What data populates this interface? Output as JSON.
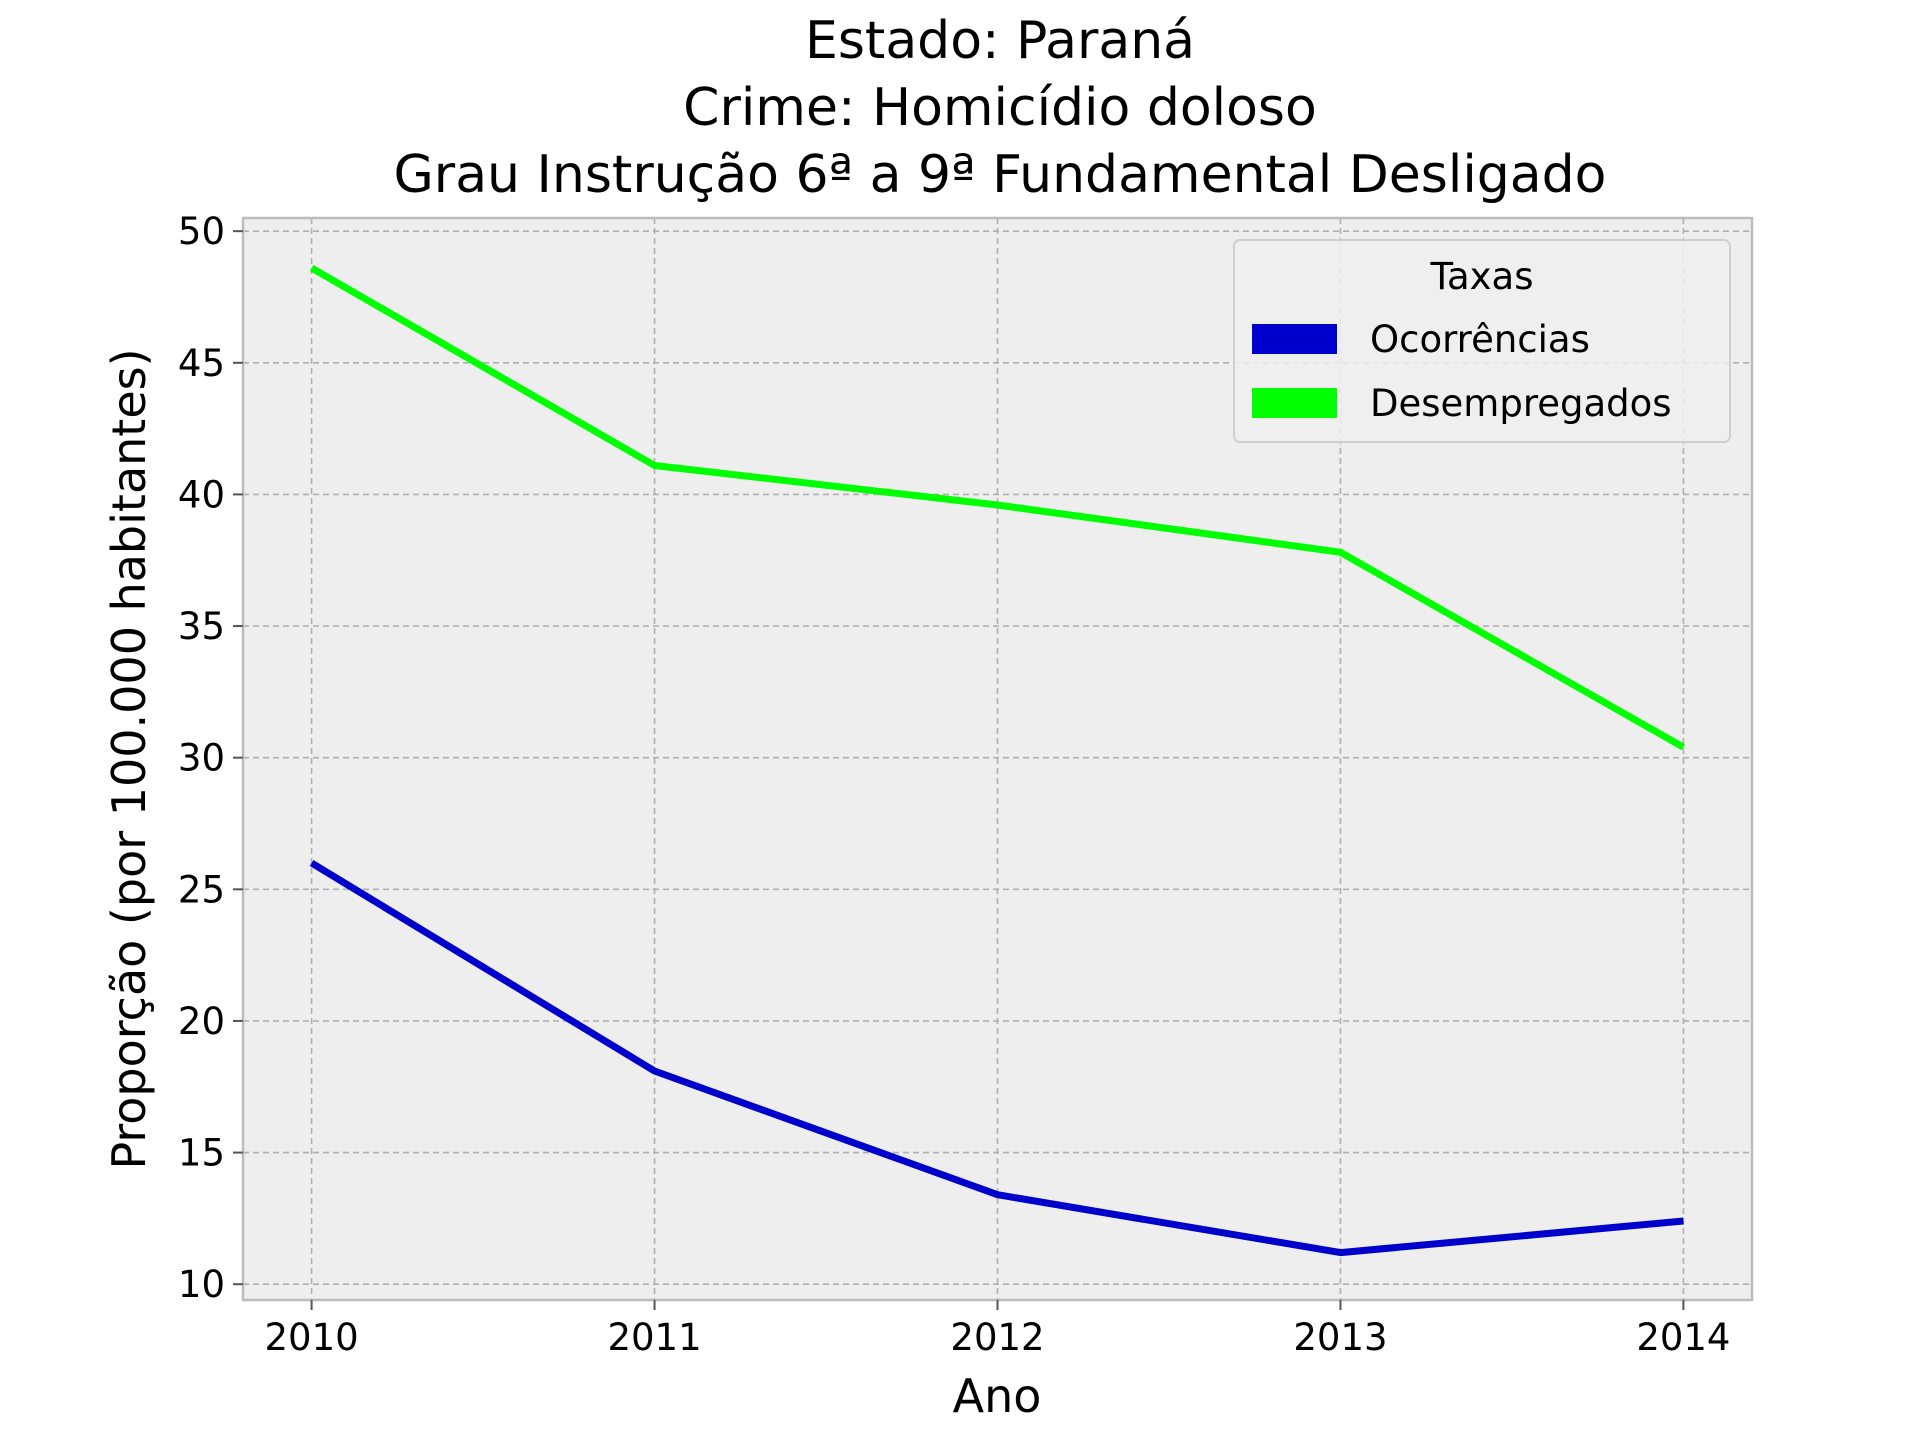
{
  "chart_data": {
    "type": "line",
    "title_lines": [
      "Estado: Paraná",
      "Crime: Homicídio doloso",
      "Grau Instrução  6ª a 9ª Fundamental   Desligado"
    ],
    "xlabel": "Ano",
    "ylabel": "Proporção (por 100.000 habitantes)",
    "x": [
      2010,
      2011,
      2012,
      2013,
      2014
    ],
    "x_tick_labels": [
      "2010",
      "2011",
      "2012",
      "2013",
      "2014"
    ],
    "y_ticks": [
      10,
      15,
      20,
      25,
      30,
      35,
      40,
      45,
      50
    ],
    "y_tick_labels": [
      "10",
      "15",
      "20",
      "25",
      "30",
      "35",
      "40",
      "45",
      "50"
    ],
    "xlim": [
      2009.8,
      2014.2
    ],
    "ylim": [
      9.4,
      50.5
    ],
    "grid": true,
    "legend": {
      "title": "Taxas",
      "placement": "top-right"
    },
    "series": [
      {
        "name": "Ocorrências",
        "color": "#0000cc",
        "values": [
          26.0,
          18.1,
          13.4,
          11.2,
          12.4
        ]
      },
      {
        "name": "Desempregados",
        "color": "#00ff00",
        "values": [
          48.6,
          41.1,
          39.6,
          37.8,
          30.4
        ]
      }
    ]
  }
}
